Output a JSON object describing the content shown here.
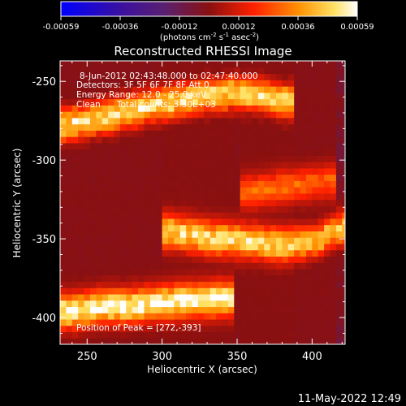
{
  "colorbar": {
    "ticks": [
      "-0.00059",
      "-0.00036",
      "-0.00012",
      "0.00012",
      "0.00036",
      "0.00059"
    ],
    "units_main": "(photons cm",
    "units_exp1": "-2",
    "units_mid": " s",
    "units_exp2": "-1",
    "units_tail": " asec",
    "units_exp3": "-2",
    "units_close": ")"
  },
  "chart_data": {
    "type": "heatmap",
    "title": "Reconstructed RHESSI Image",
    "xlabel": "Heliocentric X (arcsec)",
    "ylabel": "Heliocentric Y (arcsec)",
    "xlim": [
      232,
      422
    ],
    "ylim": [
      -417,
      -237
    ],
    "xticks": [
      250,
      300,
      350,
      400
    ],
    "yticks": [
      -250,
      -300,
      -350,
      -400
    ],
    "color_range": [
      -0.00059,
      0.00059
    ],
    "annotations": [
      "8-Jun-2012 02:43:48.000 to 02:47:40.000",
      "Detectors: 3F 5F 6F 7F 8F  Att 0",
      "Energy Range: 12.0 - 25.0 keV",
      "Clean      Total counts: 3.30E+03"
    ],
    "peak_label": "Position of Peak = [272,-393]",
    "peak_position": [
      272,
      -393
    ],
    "ridges": [
      {
        "x": [
          232,
          260,
          290,
          320,
          345,
          365,
          380
        ],
        "y": [
          -278,
          -273,
          -266,
          -260,
          -257,
          -258,
          -262
        ],
        "intensity": 0.00055
      },
      {
        "x": [
          305,
          330,
          355,
          380,
          400,
          420
        ],
        "y": [
          -345,
          -349,
          -351,
          -354,
          -352,
          -343
        ],
        "intensity": 0.00052
      },
      {
        "x": [
          240,
          260,
          275,
          295,
          320,
          340
        ],
        "y": [
          -396,
          -393,
          -393,
          -391,
          -389,
          -388
        ],
        "intensity": 0.00059
      },
      {
        "x": [
          360,
          385,
          410
        ],
        "y": [
          -320,
          -316,
          -313
        ],
        "intensity": 0.0003
      }
    ]
  },
  "footer": {
    "timestamp": "11-May-2022 12:49"
  }
}
